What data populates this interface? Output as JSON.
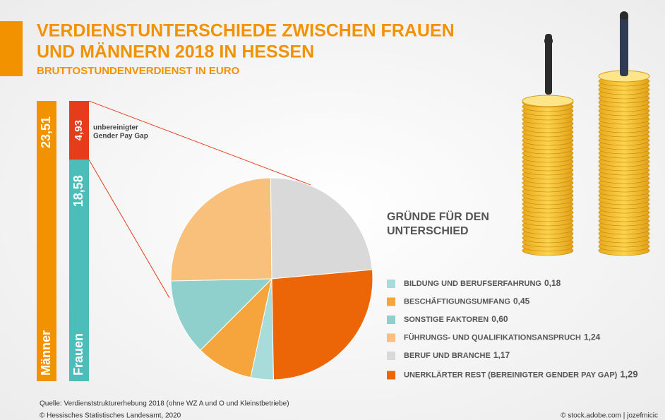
{
  "header": {
    "title": [
      "VERDIENSTUNTERSCHIEDE ZWISCHEN FRAUEN",
      "UND MÄNNERN 2018 IN HESSEN"
    ],
    "subtitle": "BRUTTOSTUNDENVERDIENST IN EURO"
  },
  "chart_data": [
    {
      "type": "bar",
      "categories": [
        "Männer",
        "Frauen"
      ],
      "values": [
        23.51,
        18.58
      ],
      "value_labels": [
        "23,51",
        "18,58"
      ],
      "colors": [
        "#f39200",
        "#4dbdb9"
      ],
      "gap": {
        "label": [
          "unbereinigter",
          "Gender Pay Gap"
        ],
        "value": 4.93,
        "value_label": "4,93",
        "color": "#e63c1c"
      }
    },
    {
      "type": "pie",
      "title": [
        "GRÜNDE FÜR DEN",
        "UNTERSCHIED"
      ],
      "categories": [
        "BILDUNG UND BERUFSERFAHRUNG",
        "BESCHÄFTIGUNGSUMFANG",
        "SONSTIGE FAKTOREN",
        "FÜHRUNGS- UND QUALIFIKATIONSANSPRUCH",
        "BERUF UND BRANCHE",
        "UNERKLÄRTER REST (BEREINIGTER GENDER PAY GAP)"
      ],
      "values": [
        0.18,
        0.45,
        0.6,
        1.24,
        1.17,
        1.29
      ],
      "value_labels": [
        "0,18",
        "0,45",
        "0,60",
        "1,24",
        "1,17",
        "1,29"
      ],
      "colors": [
        "#a8dcdb",
        "#f5a53b",
        "#8fd0cc",
        "#f8c07a",
        "#d9d9d9",
        "#ec6608"
      ]
    }
  ],
  "footer": {
    "source": "Quelle: Verdienststrukturerhebung 2018 (ohne WZ A und O und Kleinstbetriebe)",
    "copyright": "© Hessisches Statistisches Landesamt, 2020",
    "credit": "© stock.adobe.com | jozefmicic"
  }
}
